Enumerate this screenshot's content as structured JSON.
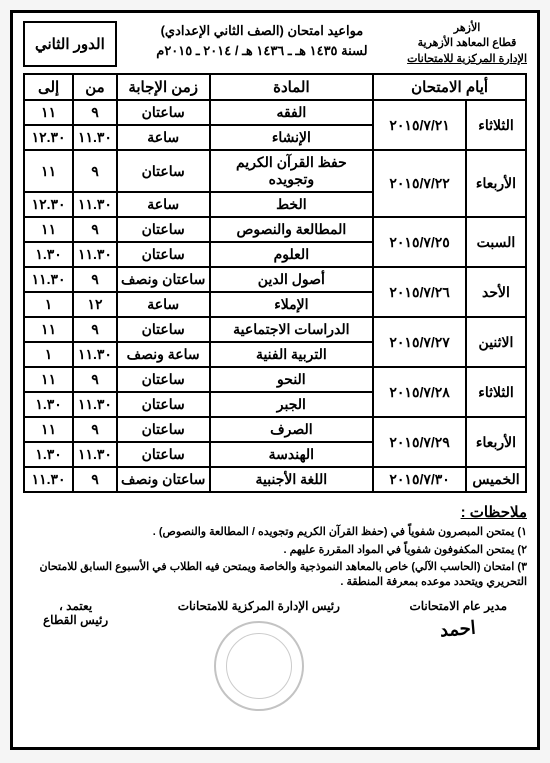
{
  "header": {
    "org1": "الأزهر",
    "org2": "قطاع المعاهد الأزهرية",
    "org3": "الإدارة المركزية للامتحانات",
    "title": "مواعيد امتحان (الصف الثاني الإعدادي)",
    "year": "لسنة ١٤٣٥ هـ ـ ١٤٣٦ هـ / ٢٠١٤ ـ ٢٠١٥م",
    "round": "الدور الثاني"
  },
  "columns": {
    "days": "أيام الامتحان",
    "subject": "المادة",
    "duration": "زمن الإجابة",
    "from": "من",
    "to": "إلى"
  },
  "rows": [
    {
      "day": "الثلاثاء",
      "date": "٢٠١٥/٧/٢١",
      "subj1": "الفقه",
      "dur1": "ساعتان",
      "f1": "٩",
      "t1": "١١",
      "subj2": "الإنشاء",
      "dur2": "ساعة",
      "f2": "١١.٣٠",
      "t2": "١٢.٣٠"
    },
    {
      "day": "الأربعاء",
      "date": "٢٠١٥/٧/٢٢",
      "subj1": "حفظ القرآن الكريم وتجويده",
      "dur1": "ساعتان",
      "f1": "٩",
      "t1": "١١",
      "subj2": "الخط",
      "dur2": "ساعة",
      "f2": "١١.٣٠",
      "t2": "١٢.٣٠"
    },
    {
      "day": "السبت",
      "date": "٢٠١٥/٧/٢٥",
      "subj1": "المطالعة والنصوص",
      "dur1": "ساعتان",
      "f1": "٩",
      "t1": "١١",
      "subj2": "العلوم",
      "dur2": "ساعتان",
      "f2": "١١.٣٠",
      "t2": "١.٣٠"
    },
    {
      "day": "الأحد",
      "date": "٢٠١٥/٧/٢٦",
      "subj1": "أصول الدين",
      "dur1": "ساعتان ونصف",
      "f1": "٩",
      "t1": "١١.٣٠",
      "subj2": "الإملاء",
      "dur2": "ساعة",
      "f2": "١٢",
      "t2": "١"
    },
    {
      "day": "الاثنين",
      "date": "٢٠١٥/٧/٢٧",
      "subj1": "الدراسات الاجتماعية",
      "dur1": "ساعتان",
      "f1": "٩",
      "t1": "١١",
      "subj2": "التربية الفنية",
      "dur2": "ساعة ونصف",
      "f2": "١١.٣٠",
      "t2": "١"
    },
    {
      "day": "الثلاثاء",
      "date": "٢٠١٥/٧/٢٨",
      "subj1": "النحو",
      "dur1": "ساعتان",
      "f1": "٩",
      "t1": "١١",
      "subj2": "الجبر",
      "dur2": "ساعتان",
      "f2": "١١.٣٠",
      "t2": "١.٣٠"
    },
    {
      "day": "الأربعاء",
      "date": "٢٠١٥/٧/٢٩",
      "subj1": "الصرف",
      "dur1": "ساعتان",
      "f1": "٩",
      "t1": "١١",
      "subj2": "الهندسة",
      "dur2": "ساعتان",
      "f2": "١١.٣٠",
      "t2": "١.٣٠"
    },
    {
      "day": "الخميس",
      "date": "٢٠١٥/٧/٣٠",
      "subj1": "اللغة الأجنبية",
      "dur1": "ساعتان ونصف",
      "f1": "٩",
      "t1": "١١.٣٠"
    }
  ],
  "notes": {
    "title": "ملاحظات :",
    "n1": "١) يمتحن المبصرون شفوياً في (حفظ القرآن الكريم وتجويده / المطالعة والنصوص) .",
    "n2": "٢) يمتحن المكفوفون شفوياً في المواد المقررة عليهم .",
    "n3": "٣) امتحان (الحاسب الآلي) خاص بالمعاهد النموذجية والخاصة ويمتحن فيه الطلاب في الأسبوع السابق للامتحان التحريري ويتحدد موعده بمعرفة المنطقة ."
  },
  "sigs": {
    "right_title": "مدير عام الامتحانات",
    "center_title": "رئيس الإدارة المركزية للامتحانات",
    "left_title": "يعتمد ،",
    "left_sub": "رئيس القطاع"
  }
}
